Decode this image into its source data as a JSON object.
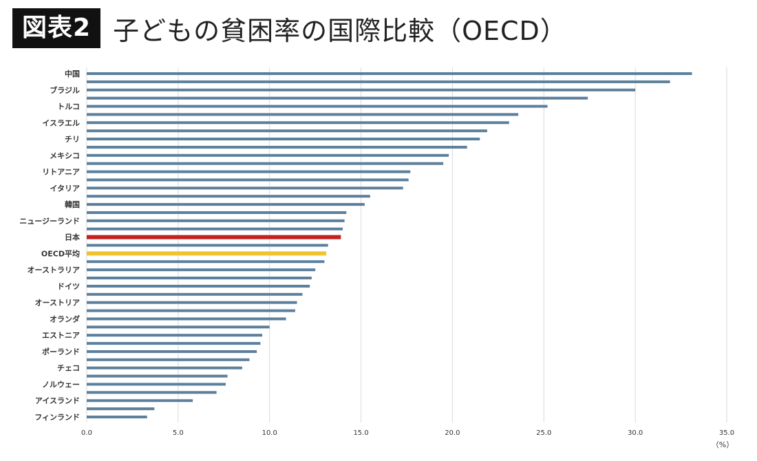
{
  "header": {
    "badge": "図表2",
    "title": "子どもの貧困率の国際比較（OECD）"
  },
  "colors": {
    "bar": "#5b7f9c",
    "japan": "#c42020",
    "oecd_average": "#f0c431"
  },
  "chart_data": {
    "type": "bar",
    "orientation": "horizontal",
    "title": "子どもの貧困率の国際比較（OECD）",
    "xlabel": "",
    "unit": "（%）",
    "xlim": [
      0,
      35
    ],
    "xticks": [
      "0.0",
      "5.0",
      "10.0",
      "15.0",
      "20.0",
      "25.0",
      "30.0",
      "35.0"
    ],
    "grid": true,
    "categories": [
      "中国",
      "",
      "ブラジル",
      "",
      "トルコ",
      "",
      "イスラエル",
      "",
      "チリ",
      "",
      "メキシコ",
      "",
      "リトアニア",
      "",
      "イタリア",
      "",
      "韓国",
      "",
      "ニュージーランド",
      "",
      "日本",
      "",
      "OECD平均",
      "",
      "オーストラリア",
      "",
      "ドイツ",
      "",
      "オーストリア",
      "",
      "オランダ",
      "",
      "エストニア",
      "",
      "ポーランド",
      "",
      "チェコ",
      "",
      "ノルウェー",
      "",
      "アイスランド",
      "",
      "フィンランド"
    ],
    "values": [
      33.1,
      31.9,
      30.0,
      27.4,
      25.2,
      23.6,
      23.1,
      21.9,
      21.5,
      20.8,
      19.8,
      19.5,
      17.7,
      17.6,
      17.3,
      15.5,
      15.2,
      14.2,
      14.1,
      14.0,
      13.9,
      13.2,
      13.1,
      13.0,
      12.5,
      12.3,
      12.2,
      11.8,
      11.5,
      11.4,
      10.9,
      10.0,
      9.6,
      9.5,
      9.3,
      8.9,
      8.5,
      7.7,
      7.6,
      7.1,
      5.8,
      3.7,
      3.3
    ],
    "highlights": [
      {
        "index": 20,
        "color_key": "japan"
      },
      {
        "index": 22,
        "color_key": "oecd_average"
      }
    ]
  }
}
